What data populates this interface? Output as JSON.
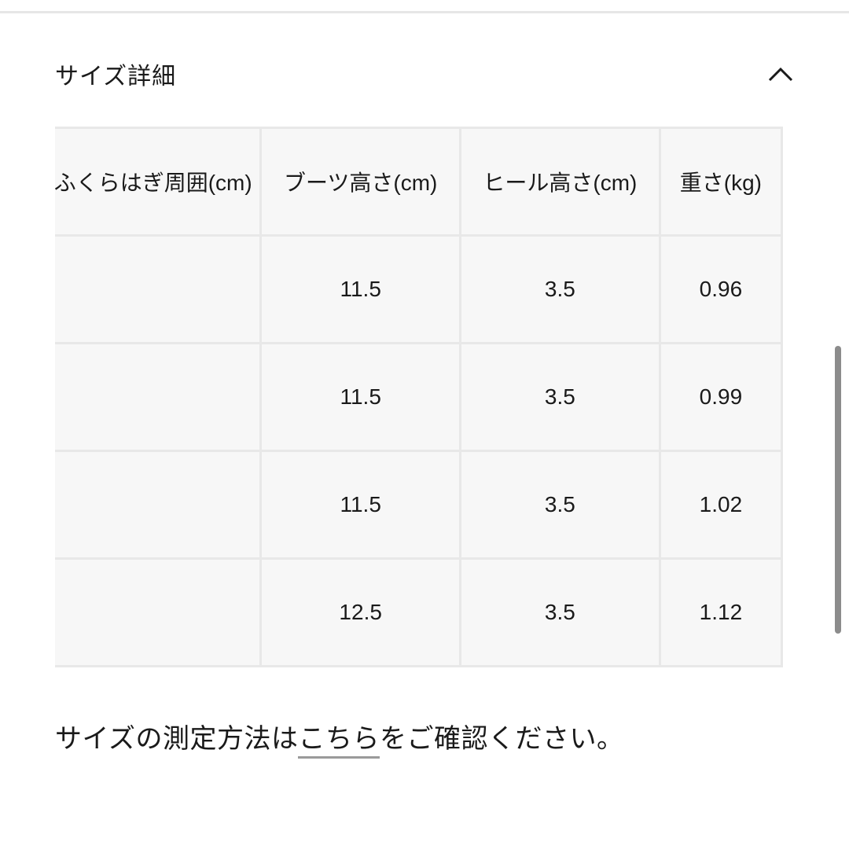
{
  "section": {
    "title": "サイズ詳細",
    "toggle_icon": "chevron-up-icon"
  },
  "table": {
    "headers": [
      "ふくらはぎ周囲(cm)",
      "ブーツ高さ(cm)",
      "ヒール高さ(cm)",
      "重さ(kg)"
    ],
    "rows": [
      [
        "",
        "11.5",
        "3.5",
        "0.96"
      ],
      [
        "",
        "11.5",
        "3.5",
        "0.99"
      ],
      [
        "",
        "11.5",
        "3.5",
        "1.02"
      ],
      [
        "",
        "12.5",
        "3.5",
        "1.12"
      ]
    ]
  },
  "note": {
    "before": "サイズの測定方法は",
    "link": "こちら",
    "after": "をご確認ください。"
  },
  "colors": {
    "cell_bg": "#f7f7f7",
    "border": "#e8e8e8",
    "link_underline": "#9a9a9a"
  }
}
